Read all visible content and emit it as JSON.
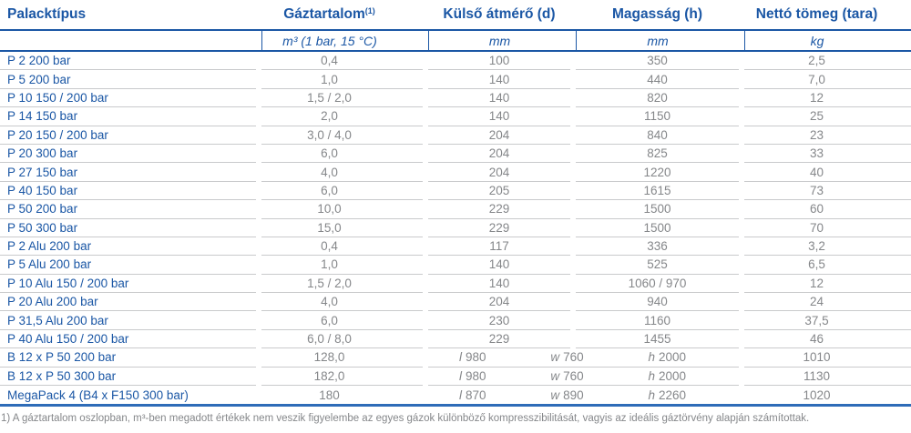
{
  "table": {
    "columns": [
      {
        "label": "Palacktípus",
        "unit": ""
      },
      {
        "label": "Gáztartalom",
        "sup": "(1)",
        "unit": "m³ (1 bar, 15 °C)"
      },
      {
        "label": "Külső átmérő (d)",
        "unit": "mm"
      },
      {
        "label": "Magasság (h)",
        "unit": "mm"
      },
      {
        "label": "Nettó tömeg (tara)",
        "unit": "kg"
      }
    ],
    "rows": [
      {
        "type": "P 2 200 bar",
        "gas": "0,4",
        "d": "100",
        "h": "350",
        "tara": "2,5"
      },
      {
        "type": "P 5 200 bar",
        "gas": "1,0",
        "d": "140",
        "h": "440",
        "tara": "7,0"
      },
      {
        "type": "P 10 150 / 200 bar",
        "gas": "1,5 / 2,0",
        "d": "140",
        "h": "820",
        "tara": "12"
      },
      {
        "type": "P 14 150 bar",
        "gas": "2,0",
        "d": "140",
        "h": "1150",
        "tara": "25"
      },
      {
        "type": "P 20 150 / 200 bar",
        "gas": "3,0 / 4,0",
        "d": "204",
        "h": "840",
        "tara": "23"
      },
      {
        "type": "P 20 300 bar",
        "gas": "6,0",
        "d": "204",
        "h": "825",
        "tara": "33"
      },
      {
        "type": "P 27 150 bar",
        "gas": "4,0",
        "d": "204",
        "h": "1220",
        "tara": "40"
      },
      {
        "type": "P 40 150 bar",
        "gas": "6,0",
        "d": "205",
        "h": "1615",
        "tara": "73"
      },
      {
        "type": "P 50 200 bar",
        "gas": "10,0",
        "d": "229",
        "h": "1500",
        "tara": "60"
      },
      {
        "type": "P 50 300 bar",
        "gas": "15,0",
        "d": "229",
        "h": "1500",
        "tara": "70"
      },
      {
        "type": "P 2 Alu 200 bar",
        "gas": "0,4",
        "d": "117",
        "h": "336",
        "tara": "3,2"
      },
      {
        "type": "P 5 Alu 200 bar",
        "gas": "1,0",
        "d": "140",
        "h": "525",
        "tara": "6,5"
      },
      {
        "type": "P 10 Alu 150 / 200 bar",
        "gas": "1,5 / 2,0",
        "d": "140",
        "h": "1060 / 970",
        "tara": "12"
      },
      {
        "type": "P 20 Alu 200 bar",
        "gas": "4,0",
        "d": "204",
        "h": "940",
        "tara": "24"
      },
      {
        "type": "P 31,5 Alu 200 bar",
        "gas": "6,0",
        "d": "230",
        "h": "1160",
        "tara": "37,5"
      },
      {
        "type": "P 40 Alu 150 / 200 bar",
        "gas": "6,0 / 8,0",
        "d": "229",
        "h": "1455",
        "tara": "46"
      },
      {
        "type": "B 12 x P 50 200 bar",
        "gas": "128,0",
        "dims": [
          "l 980",
          "w 760",
          "h 2000"
        ],
        "tara": "1010"
      },
      {
        "type": "B 12 x P 50 300 bar",
        "gas": "182,0",
        "dims": [
          "l 980",
          "w 760",
          "h 2000"
        ],
        "tara": "1130"
      },
      {
        "type": "MegaPack 4 (B4 x F150 300 bar)",
        "gas": "180",
        "dims": [
          "l 870",
          "w 890",
          "h 2260"
        ],
        "tara": "1020"
      }
    ]
  },
  "footnote": "1) A gáztartalom oszlopban, m³-ben megadott értékek nem veszik figyelembe az egyes gázok különböző kompresszibilitását, vagyis az ideális gáztörvény alapján számítottak.",
  "colors": {
    "header_blue": "#1b57a5",
    "value_gray": "#85878a",
    "row_line": "#c9cacc",
    "bottom_line": "#2e6cb8"
  }
}
